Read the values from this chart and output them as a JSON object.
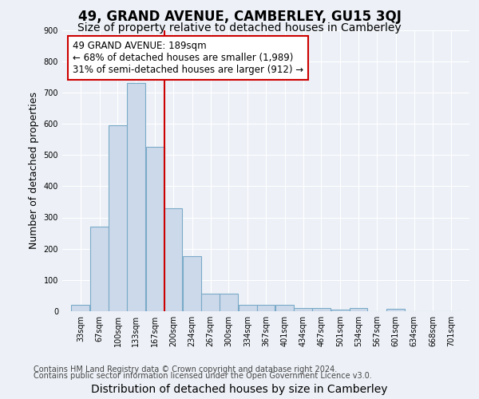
{
  "title": "49, GRAND AVENUE, CAMBERLEY, GU15 3QJ",
  "subtitle": "Size of property relative to detached houses in Camberley",
  "xlabel": "Distribution of detached houses by size in Camberley",
  "ylabel": "Number of detached properties",
  "bar_labels": [
    "33sqm",
    "67sqm",
    "100sqm",
    "133sqm",
    "167sqm",
    "200sqm",
    "234sqm",
    "267sqm",
    "300sqm",
    "334sqm",
    "367sqm",
    "401sqm",
    "434sqm",
    "467sqm",
    "501sqm",
    "534sqm",
    "567sqm",
    "601sqm",
    "634sqm",
    "668sqm",
    "701sqm"
  ],
  "bar_values": [
    20,
    270,
    595,
    730,
    525,
    330,
    175,
    55,
    55,
    20,
    20,
    20,
    10,
    10,
    5,
    10,
    0,
    8,
    0,
    0,
    0
  ],
  "bar_color": "#ccd9ea",
  "bar_edgecolor": "#7aaac8",
  "vline_color": "#cc0000",
  "vline_x": 189,
  "bin_starts": [
    33,
    67,
    100,
    133,
    167,
    200,
    234,
    267,
    300,
    334,
    367,
    401,
    434,
    467,
    501,
    534,
    567,
    601,
    634,
    668,
    701
  ],
  "bin_width": 33,
  "annotation_title": "49 GRAND AVENUE: 189sqm",
  "annotation_line1": "← 68% of detached houses are smaller (1,989)",
  "annotation_line2": "31% of semi-detached houses are larger (912) →",
  "annotation_box_facecolor": "#ffffff",
  "annotation_box_edgecolor": "#cc0000",
  "ylim": [
    0,
    900
  ],
  "yticks": [
    0,
    100,
    200,
    300,
    400,
    500,
    600,
    700,
    800,
    900
  ],
  "background_color": "#edf1f7",
  "grid_color": "#ffffff",
  "title_fontsize": 12,
  "subtitle_fontsize": 10,
  "xlabel_fontsize": 10,
  "ylabel_fontsize": 9,
  "tick_fontsize": 7,
  "annotation_fontsize": 8.5,
  "footer_fontsize": 7,
  "footer_line1": "Contains HM Land Registry data © Crown copyright and database right 2024.",
  "footer_line2": "Contains public sector information licensed under the Open Government Licence v3.0."
}
